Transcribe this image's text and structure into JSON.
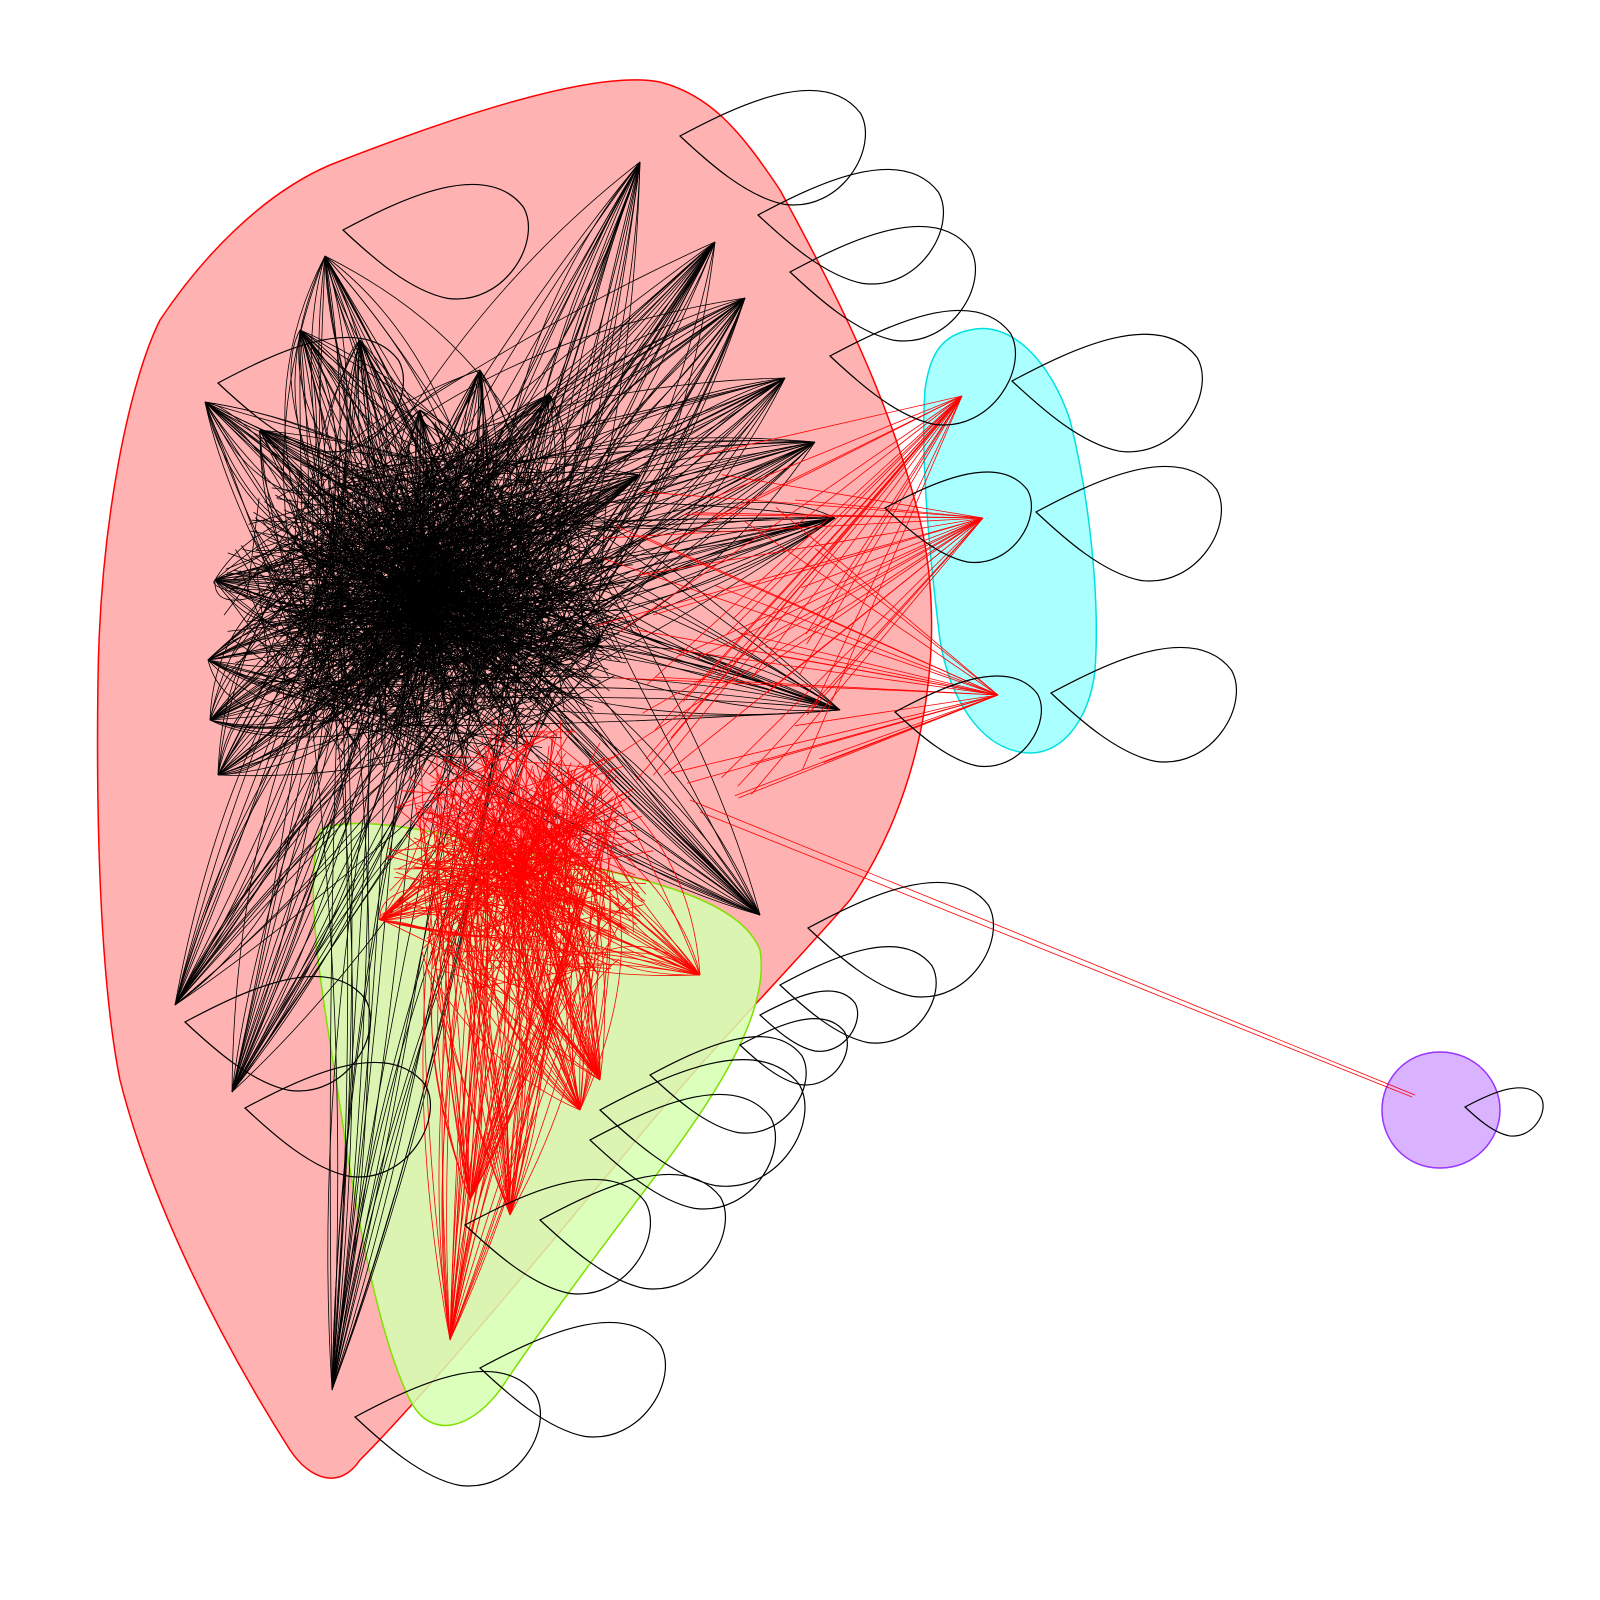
{
  "diagram": {
    "type": "network-graph",
    "background": "#ffffff",
    "groups": [
      {
        "id": "group-red",
        "fill": "#ffb2b2",
        "stroke": "#ff0000"
      },
      {
        "id": "group-green",
        "fill": "#d6ffb0",
        "stroke": "#80e000"
      },
      {
        "id": "group-cyan",
        "fill": "#aaffff",
        "stroke": "#00e0e0"
      },
      {
        "id": "group-purple",
        "fill": "#d9b3ff",
        "stroke": "#9933ff"
      }
    ],
    "edge_colors": {
      "within_group": "#000000",
      "between_groups": "#ff0000"
    }
  }
}
